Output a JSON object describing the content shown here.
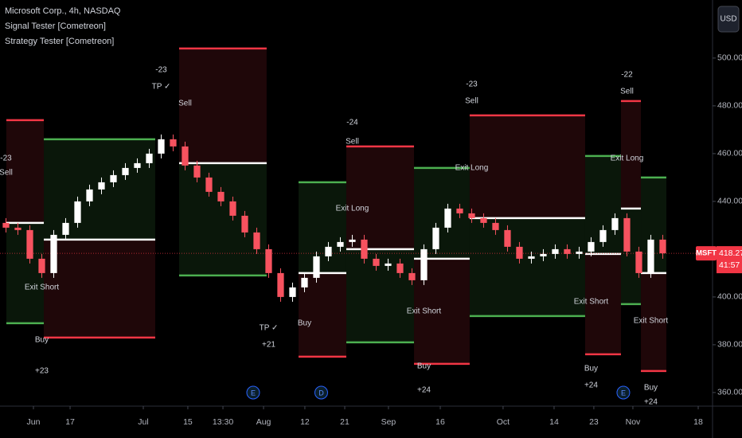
{
  "chart_data": {
    "type": "candlestick",
    "header": [
      "Microsoft Corp., 4h, NASDAQ",
      "Signal Tester [Cometreon]",
      "Strategy Tester [Cometreon]"
    ],
    "currency": "USD",
    "open": [
      431,
      429,
      428,
      416,
      410,
      426,
      431,
      440,
      445,
      448,
      451,
      454,
      456,
      460,
      466,
      463,
      455,
      450,
      444,
      440,
      434,
      427,
      420,
      410,
      400,
      404,
      408,
      417,
      421,
      423,
      424,
      416,
      413,
      414,
      410,
      407,
      420,
      429,
      437,
      435,
      433,
      431,
      428,
      421,
      416,
      417,
      418,
      420,
      418,
      419,
      423,
      428,
      433,
      419,
      410,
      424
    ],
    "high": [
      433,
      431,
      430,
      418,
      428,
      433,
      442,
      447,
      450,
      453,
      456,
      458,
      462,
      468,
      468,
      465,
      457,
      452,
      446,
      442,
      436,
      429,
      422,
      412,
      406,
      410,
      419,
      423,
      425,
      426,
      426,
      418,
      416,
      416,
      412,
      422,
      431,
      439,
      439,
      437,
      435,
      433,
      430,
      423,
      419,
      420,
      422,
      422,
      421,
      425,
      430,
      435,
      435,
      421,
      426,
      426
    ],
    "low": [
      427,
      426,
      414,
      408,
      408,
      424,
      429,
      438,
      443,
      446,
      449,
      452,
      454,
      458,
      461,
      453,
      448,
      442,
      438,
      432,
      425,
      418,
      408,
      398,
      398,
      402,
      406,
      415,
      419,
      421,
      414,
      411,
      411,
      408,
      405,
      405,
      418,
      427,
      433,
      431,
      429,
      426,
      419,
      414,
      414,
      415,
      416,
      416,
      416,
      417,
      421,
      426,
      417,
      408,
      408,
      416
    ],
    "close": [
      429,
      428,
      416,
      410,
      426,
      431,
      440,
      445,
      448,
      451,
      454,
      456,
      460,
      466,
      463,
      455,
      450,
      444,
      440,
      434,
      427,
      420,
      410,
      400,
      404,
      408,
      417,
      421,
      423,
      424,
      416,
      413,
      414,
      410,
      407,
      420,
      429,
      437,
      435,
      433,
      431,
      428,
      421,
      416,
      417,
      418,
      420,
      418,
      419,
      423,
      428,
      433,
      419,
      410,
      424,
      418.27
    ],
    "up_color": "#ffffff",
    "down_color": "#f7525f",
    "xlim": [
      -0.5,
      59.17
    ],
    "ylim": [
      354.3,
      524.3
    ],
    "yticks": [
      {
        "value": 360,
        "label": "360.00"
      },
      {
        "value": 380,
        "label": "380.00"
      },
      {
        "value": 400,
        "label": "400.00"
      },
      {
        "value": 440,
        "label": "440.00"
      },
      {
        "value": 460,
        "label": "460.00"
      },
      {
        "value": 480,
        "label": "480.00"
      },
      {
        "value": 500,
        "label": "500.00"
      }
    ],
    "xticks": [
      {
        "value": 2.3,
        "label": "Jun"
      },
      {
        "value": 5.37,
        "label": "17"
      },
      {
        "value": 11.5,
        "label": "Jul"
      },
      {
        "value": 15.23,
        "label": "15"
      },
      {
        "value": 18.17,
        "label": "13:30"
      },
      {
        "value": 21.57,
        "label": "Aug"
      },
      {
        "value": 25.03,
        "label": "12"
      },
      {
        "value": 28.37,
        "label": "21"
      },
      {
        "value": 32.03,
        "label": "Sep"
      },
      {
        "value": 36.37,
        "label": "16"
      },
      {
        "value": 41.63,
        "label": "Oct"
      },
      {
        "value": 45.9,
        "label": "14"
      },
      {
        "value": 49.23,
        "label": "23"
      },
      {
        "value": 52.5,
        "label": "Nov"
      },
      {
        "value": 57.97,
        "label": "18"
      }
    ],
    "grid": false,
    "trades": [
      {
        "side": "short",
        "start": 0.03,
        "end": 3.17,
        "entry": 431,
        "tp": 389,
        "sl": 474
      },
      {
        "side": "long",
        "start": 3.17,
        "end": 12.5,
        "entry": 424,
        "tp": 466,
        "sl": 383
      },
      {
        "side": "short",
        "start": 14.5,
        "end": 21.83,
        "entry": 456,
        "tp": 409,
        "sl": 504
      },
      {
        "side": "long",
        "start": 24.5,
        "end": 28.5,
        "entry": 410,
        "tp": 448,
        "sl": 375
      },
      {
        "side": "short",
        "start": 28.5,
        "end": 34.17,
        "entry": 420,
        "tp": 381,
        "sl": 463
      },
      {
        "side": "long",
        "start": 34.17,
        "end": 38.83,
        "entry": 416,
        "tp": 454,
        "sl": 372
      },
      {
        "side": "short",
        "start": 38.83,
        "end": 48.5,
        "entry": 433,
        "tp": 392,
        "sl": 476
      },
      {
        "side": "long",
        "start": 48.5,
        "end": 51.5,
        "entry": 418,
        "tp": 459,
        "sl": 376
      },
      {
        "side": "short",
        "start": 51.5,
        "end": 53.17,
        "entry": 437,
        "tp": 397,
        "sl": 482
      },
      {
        "side": "long",
        "start": 53.17,
        "end": 55.3,
        "entry": 410,
        "tp": 450,
        "sl": 369
      }
    ],
    "long_color": "#4caf50",
    "short_color": "#f23645",
    "entry_color": "#ffffff",
    "annotations": [
      {
        "bar": 0,
        "price": 458,
        "text": "-23"
      },
      {
        "bar": 0,
        "price": 452,
        "text": "Sell"
      },
      {
        "bar": 3,
        "price": 404,
        "text": "Exit Short"
      },
      {
        "bar": 3,
        "price": 382,
        "text": "Buy"
      },
      {
        "bar": 3,
        "price": 369,
        "text": "+23"
      },
      {
        "bar": 13,
        "price": 495,
        "text": "-23"
      },
      {
        "bar": 13,
        "price": 488,
        "text": "TP ✓"
      },
      {
        "bar": 15,
        "price": 481,
        "text": "Sell"
      },
      {
        "bar": 22,
        "price": 387,
        "text": "TP ✓"
      },
      {
        "bar": 22,
        "price": 380,
        "text": "+21"
      },
      {
        "bar": 25,
        "price": 389,
        "text": "Buy"
      },
      {
        "bar": 29,
        "price": 473,
        "text": "-24"
      },
      {
        "bar": 29,
        "price": 465,
        "text": "Sell"
      },
      {
        "bar": 29,
        "price": 437,
        "text": "Exit Long"
      },
      {
        "bar": 35,
        "price": 394,
        "text": "Exit Short"
      },
      {
        "bar": 35,
        "price": 371,
        "text": "Buy"
      },
      {
        "bar": 35,
        "price": 361,
        "text": "+24"
      },
      {
        "bar": 39,
        "price": 489,
        "text": "-23"
      },
      {
        "bar": 39,
        "price": 482,
        "text": "Sell"
      },
      {
        "bar": 39,
        "price": 454,
        "text": "Exit Long"
      },
      {
        "bar": 49,
        "price": 398,
        "text": "Exit Short"
      },
      {
        "bar": 49,
        "price": 370,
        "text": "Buy"
      },
      {
        "bar": 49,
        "price": 363,
        "text": "+24"
      },
      {
        "bar": 52,
        "price": 493,
        "text": "-22"
      },
      {
        "bar": 52,
        "price": 486,
        "text": "Sell"
      },
      {
        "bar": 52,
        "price": 458,
        "text": "Exit Long"
      },
      {
        "bar": 54,
        "price": 390,
        "text": "Exit Short"
      },
      {
        "bar": 54,
        "price": 362,
        "text": "Buy"
      },
      {
        "bar": 54,
        "price": 356,
        "text": "+24"
      }
    ],
    "events": [
      {
        "bar": 20.7,
        "label": "E"
      },
      {
        "bar": 26.4,
        "label": "D"
      },
      {
        "bar": 51.7,
        "label": "E"
      }
    ],
    "last_price": {
      "symbol": "MSFT",
      "price": 418.27,
      "countdown": "41:57",
      "color": "#f23645"
    }
  }
}
